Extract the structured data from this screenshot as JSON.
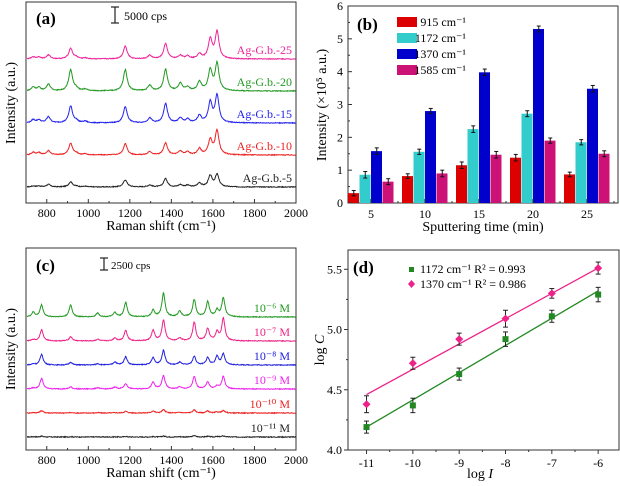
{
  "chart_data": [
    {
      "panel": "(a)",
      "type": "line",
      "xlabel": "Raman shift (cm⁻¹)",
      "ylabel": "Intensity (a.u.)",
      "xlim": [
        700,
        2000
      ],
      "xticks": [
        800,
        1000,
        1200,
        1400,
        1600,
        1800,
        2000
      ],
      "yticks": [],
      "scale_bar": "5000 cps",
      "peaks_cm": [
        735,
        762,
        808,
        915,
        942,
        985,
        1178,
        1296,
        1372,
        1443,
        1478,
        1535,
        1587,
        1620
      ],
      "series": [
        {
          "name": "Ag-G.b.-5",
          "color": "#222222",
          "offset": 0,
          "heights": [
            0.3,
            0.3,
            0.8,
            1.6,
            0.2,
            0.2,
            2.2,
            0.6,
            2.6,
            0.7,
            0.5,
            1.2,
            3.4,
            3.8
          ]
        },
        {
          "name": "Ag-G.b.-10",
          "color": "#ee2222",
          "offset": 1,
          "heights": [
            0.8,
            0.7,
            1.3,
            3.6,
            0.5,
            0.3,
            3.5,
            1.0,
            3.7,
            1.2,
            0.9,
            1.9,
            4.6,
            7.5
          ]
        },
        {
          "name": "Ag-G.b.-15",
          "color": "#2222ee",
          "offset": 2,
          "heights": [
            1.0,
            0.9,
            1.9,
            5.2,
            0.6,
            0.5,
            5.1,
            1.5,
            6.0,
            1.5,
            1.1,
            2.3,
            6.3,
            8.5
          ]
        },
        {
          "name": "Ag-G.b.-20",
          "color": "#229922",
          "offset": 3,
          "heights": [
            1.2,
            1.0,
            2.1,
            6.6,
            0.7,
            0.5,
            6.6,
            1.7,
            6.7,
            2.3,
            1.1,
            2.8,
            6.4,
            8.5
          ]
        },
        {
          "name": "Ag-G.b.-25",
          "color": "#ee2299",
          "offset": 4,
          "heights": [
            0.6,
            0.6,
            1.2,
            3.3,
            0.5,
            0.3,
            4.0,
            1.1,
            4.7,
            1.1,
            0.9,
            1.6,
            6.0,
            8.4
          ]
        }
      ]
    },
    {
      "panel": "(b)",
      "type": "bar",
      "xlabel": "Sputtering time (min)",
      "ylabel": "Intensity (×10⁵ a.u.)",
      "ylim": [
        0,
        6
      ],
      "yticks": [
        0,
        1,
        2,
        3,
        4,
        5,
        6
      ],
      "categories": [
        "5",
        "10",
        "15",
        "20",
        "25"
      ],
      "series": [
        {
          "name": "915 cm⁻¹",
          "color": "#dd0000",
          "values": [
            0.3,
            0.82,
            1.15,
            1.38,
            0.87
          ],
          "errors": [
            0.08,
            0.07,
            0.1,
            0.1,
            0.07
          ]
        },
        {
          "name": "1172 cm⁻¹",
          "color": "#33cccc",
          "values": [
            0.86,
            1.56,
            2.25,
            2.72,
            1.85
          ],
          "errors": [
            0.1,
            0.08,
            0.1,
            0.09,
            0.08
          ]
        },
        {
          "name": "1370 cm⁻¹",
          "color": "#0000cc",
          "values": [
            1.58,
            2.8,
            3.98,
            5.3,
            3.48
          ],
          "errors": [
            0.1,
            0.08,
            0.1,
            0.09,
            0.1
          ]
        },
        {
          "name": "1585 cm⁻¹",
          "color": "#cc1177",
          "values": [
            0.65,
            0.9,
            1.47,
            1.9,
            1.5
          ],
          "errors": [
            0.09,
            0.1,
            0.1,
            0.08,
            0.09
          ]
        }
      ],
      "legend": "top-left"
    },
    {
      "panel": "(c)",
      "type": "line",
      "xlabel": "Raman shift (cm⁻¹)",
      "ylabel": "Intensity (a.u.)",
      "xlim": [
        700,
        2000
      ],
      "xticks": [
        800,
        1000,
        1200,
        1400,
        1600,
        1800,
        2000
      ],
      "yticks": [],
      "scale_bar": "2500 cps",
      "peaks_cm": [
        735,
        775,
        915,
        1045,
        1128,
        1180,
        1312,
        1362,
        1440,
        1510,
        1575,
        1620,
        1650
      ],
      "series": [
        {
          "name": "10⁻¹¹ M",
          "color": "#222222",
          "offset": 0,
          "heights": [
            0.1,
            0.25,
            0.1,
            0.05,
            0.05,
            0.15,
            0.1,
            0.3,
            0.1,
            0.4,
            0.2,
            0.1,
            0.3
          ]
        },
        {
          "name": "10⁻¹⁰ M",
          "color": "#ee2222",
          "offset": 1,
          "heights": [
            0.1,
            0.7,
            0.1,
            0.1,
            0.1,
            0.5,
            0.6,
            1.0,
            0.2,
            0.9,
            0.6,
            0.3,
            0.7
          ]
        },
        {
          "name": "10⁻⁹ M",
          "color": "#ee22ee",
          "offset": 2,
          "heights": [
            0.3,
            3.2,
            0.6,
            0.4,
            0.6,
            1.6,
            2.0,
            4.0,
            0.6,
            3.7,
            2.1,
            0.8,
            3.8
          ]
        },
        {
          "name": "10⁻⁸ M",
          "color": "#2222dd",
          "offset": 3,
          "heights": [
            0.3,
            3.2,
            0.8,
            0.4,
            0.9,
            2.5,
            2.2,
            4.4,
            0.8,
            2.6,
            2.2,
            2.6,
            3.3
          ]
        },
        {
          "name": "10⁻⁷ M",
          "color": "#ee2288",
          "offset": 4,
          "heights": [
            0.4,
            3.4,
            1.3,
            0.5,
            0.9,
            3.2,
            3.2,
            6.3,
            0.9,
            5.6,
            3.7,
            2.6,
            6.9
          ]
        },
        {
          "name": "10⁻⁶ M",
          "color": "#229922",
          "offset": 5,
          "heights": [
            1.4,
            3.6,
            3.6,
            1.2,
            1.3,
            4.4,
            2.0,
            7.3,
            1.8,
            5.2,
            4.6,
            2.0,
            5.8
          ]
        }
      ]
    },
    {
      "panel": "(d)",
      "type": "scatter",
      "xlabel": "log I",
      "ylabel": "log C",
      "xlim": [
        -11.4,
        -5.55
      ],
      "ylim": [
        4.0,
        5.66
      ],
      "xticks": [
        -11,
        -10,
        -9,
        -8,
        -7,
        -6
      ],
      "yticks": [
        4.0,
        4.5,
        5.0,
        5.5
      ],
      "ytick_labels": [
        "4.0",
        "4.5",
        "5.0",
        "5.5"
      ],
      "x": [
        -11,
        -10,
        -9,
        -8,
        -7,
        -6
      ],
      "series": [
        {
          "name": "1172 cm⁻¹",
          "r2_label": "R² = 0.993",
          "color": "#228822",
          "marker": "square",
          "values": [
            4.19,
            4.37,
            4.63,
            4.92,
            5.11,
            5.29
          ],
          "errors": [
            0.05,
            0.06,
            0.05,
            0.06,
            0.05,
            0.06
          ],
          "fit": [
            4.19,
            5.32
          ]
        },
        {
          "name": "1370 cm⁻¹",
          "r2_label": "R² = 0.986",
          "color": "#ee2288",
          "marker": "diamond",
          "values": [
            4.38,
            4.72,
            4.92,
            5.09,
            5.3,
            5.51
          ],
          "errors": [
            0.07,
            0.05,
            0.05,
            0.07,
            0.04,
            0.05
          ],
          "fit": [
            4.46,
            5.51
          ]
        }
      ],
      "legend": "top-center"
    }
  ]
}
